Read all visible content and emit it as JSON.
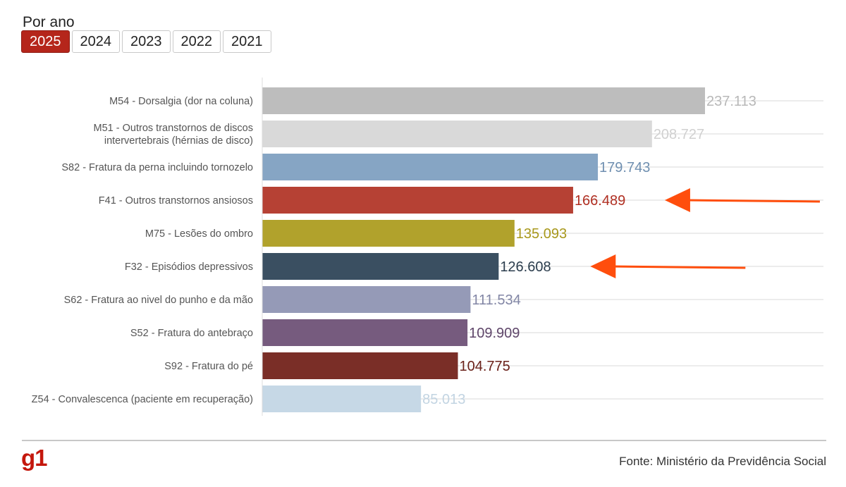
{
  "filter": {
    "label": "Por ano",
    "years": [
      "2025",
      "2024",
      "2023",
      "2022",
      "2021"
    ],
    "selected": "2025"
  },
  "chart_data": {
    "type": "bar",
    "orientation": "horizontal",
    "categories": [
      [
        "M54 - Dorsalgia (dor na coluna)"
      ],
      [
        "M51 - Outros transtornos de discos",
        "intervertebrais (hérnias de disco)"
      ],
      [
        "S82 - Fratura da perna incluindo tornozelo"
      ],
      [
        "F41 - Outros transtornos ansiosos"
      ],
      [
        "M75 - Lesões do ombro"
      ],
      [
        "F32 - Episódios depressivos"
      ],
      [
        "S62 - Fratura ao nivel do punho e da mão"
      ],
      [
        "S52 - Fratura do antebraço"
      ],
      [
        "S92 - Fratura do pé"
      ],
      [
        "Z54 - Convalescenca (paciente em recuperação)"
      ]
    ],
    "values": [
      237113,
      208727,
      179743,
      166489,
      135093,
      126608,
      111534,
      109909,
      104775,
      85013
    ],
    "value_labels": [
      "237.113",
      "208.727",
      "179.743",
      "166.489",
      "135.093",
      "126.608",
      "111.534",
      "109.909",
      "104.775",
      "85.013"
    ],
    "bar_colors": [
      "#bdbdbd",
      "#d9d9d9",
      "#86a5c4",
      "#b64134",
      "#b1a22c",
      "#3a4f61",
      "#959ab7",
      "#765b7e",
      "#7a2e27",
      "#c6d8e6"
    ],
    "label_colors": [
      "#b8b8b8",
      "#d0d0d0",
      "#6f8fb0",
      "#b02f22",
      "#a8981c",
      "#2b3d4d",
      "#8286a5",
      "#5f466a",
      "#6a2119",
      "#c2d4e2"
    ],
    "highlighted": [
      "F41 - Outros transtornos ansiosos",
      "F32 - Episódios depressivos"
    ],
    "arrow_color": "#ff4e0d",
    "xlim": [
      0,
      237113
    ],
    "grid": true,
    "title": "",
    "xlabel": "",
    "ylabel": ""
  },
  "footer": {
    "logo": "g1",
    "source": "Fonte: Ministério da Previdência Social"
  }
}
